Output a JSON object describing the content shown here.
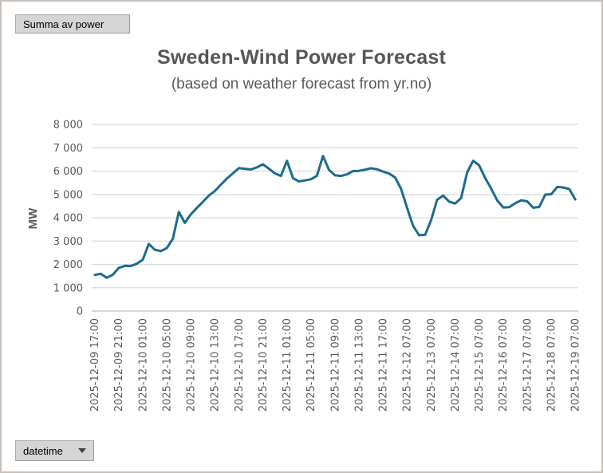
{
  "pivot_buttons": {
    "value_field_label": "Summa av power",
    "axis_field_label": "datetime"
  },
  "chart_data": {
    "type": "line",
    "title": "Sweden-Wind Power Forecast",
    "subtitle": "(based on weather forecast from yr.no)",
    "ylabel": "MW",
    "ylim": [
      0,
      8000
    ],
    "ytick_step": 1000,
    "ytick_labels": [
      "0",
      "1 000",
      "2 000",
      "3 000",
      "4 000",
      "5 000",
      "6 000",
      "7 000",
      "8 000"
    ],
    "grid": true,
    "legend": "none",
    "tick_every": 4,
    "series_name": "Summa av power",
    "x": [
      "2025-12-09 17:00",
      "2025-12-09 18:00",
      "2025-12-09 19:00",
      "2025-12-09 20:00",
      "2025-12-09 21:00",
      "2025-12-09 22:00",
      "2025-12-09 23:00",
      "2025-12-10 00:00",
      "2025-12-10 01:00",
      "2025-12-10 02:00",
      "2025-12-10 03:00",
      "2025-12-10 04:00",
      "2025-12-10 05:00",
      "2025-12-10 06:00",
      "2025-12-10 07:00",
      "2025-12-10 08:00",
      "2025-12-10 09:00",
      "2025-12-10 10:00",
      "2025-12-10 11:00",
      "2025-12-10 12:00",
      "2025-12-10 13:00",
      "2025-12-10 14:00",
      "2025-12-10 15:00",
      "2025-12-10 16:00",
      "2025-12-10 17:00",
      "2025-12-10 18:00",
      "2025-12-10 19:00",
      "2025-12-10 20:00",
      "2025-12-10 21:00",
      "2025-12-10 22:00",
      "2025-12-10 23:00",
      "2025-12-11 00:00",
      "2025-12-11 01:00",
      "2025-12-11 02:00",
      "2025-12-11 03:00",
      "2025-12-11 04:00",
      "2025-12-11 05:00",
      "2025-12-11 06:00",
      "2025-12-11 07:00",
      "2025-12-11 08:00",
      "2025-12-11 09:00",
      "2025-12-11 10:00",
      "2025-12-11 11:00",
      "2025-12-11 12:00",
      "2025-12-11 13:00",
      "2025-12-11 14:00",
      "2025-12-11 15:00",
      "2025-12-11 16:00",
      "2025-12-11 17:00",
      "2025-12-11 18:00",
      "2025-12-11 19:00",
      "2025-12-12 01:00",
      "2025-12-12 07:00",
      "2025-12-12 13:00",
      "2025-12-12 19:00",
      "2025-12-13 01:00",
      "2025-12-13 07:00",
      "2025-12-13 13:00",
      "2025-12-13 19:00",
      "2025-12-14 01:00",
      "2025-12-14 07:00",
      "2025-12-14 13:00",
      "2025-12-14 19:00",
      "2025-12-15 01:00",
      "2025-12-15 07:00",
      "2025-12-15 13:00",
      "2025-12-15 19:00",
      "2025-12-16 01:00",
      "2025-12-16 07:00",
      "2025-12-16 13:00",
      "2025-12-16 19:00",
      "2025-12-17 01:00",
      "2025-12-17 07:00",
      "2025-12-17 13:00",
      "2025-12-17 19:00",
      "2025-12-18 01:00",
      "2025-12-18 07:00",
      "2025-12-18 13:00",
      "2025-12-18 19:00",
      "2025-12-19 01:00",
      "2025-12-19 07:00"
    ],
    "values": [
      1550,
      1600,
      1430,
      1560,
      1850,
      1940,
      1930,
      2030,
      2200,
      2880,
      2630,
      2570,
      2700,
      3100,
      4250,
      3780,
      4150,
      4420,
      4680,
      4950,
      5150,
      5420,
      5680,
      5900,
      6130,
      6100,
      6070,
      6160,
      6290,
      6100,
      5900,
      5790,
      6440,
      5700,
      5560,
      5600,
      5650,
      5800,
      6650,
      6050,
      5820,
      5790,
      5860,
      6000,
      6010,
      6060,
      6120,
      6080,
      5980,
      5890,
      5730,
      5240,
      4420,
      3650,
      3250,
      3270,
      3900,
      4770,
      4950,
      4690,
      4610,
      4840,
      5950,
      6440,
      6250,
      5700,
      5250,
      4750,
      4440,
      4450,
      4620,
      4750,
      4700,
      4430,
      4460,
      4990,
      5010,
      5320,
      5300,
      5230,
      4790
    ],
    "theme": {
      "line_color": "#1d6b8f",
      "grid_color": "#d9d9d9",
      "axis_line_color": "#bfbfbf",
      "tick_text_color": "#595959",
      "title_color": "#565656",
      "button_bg": "#d5d5d5"
    }
  }
}
